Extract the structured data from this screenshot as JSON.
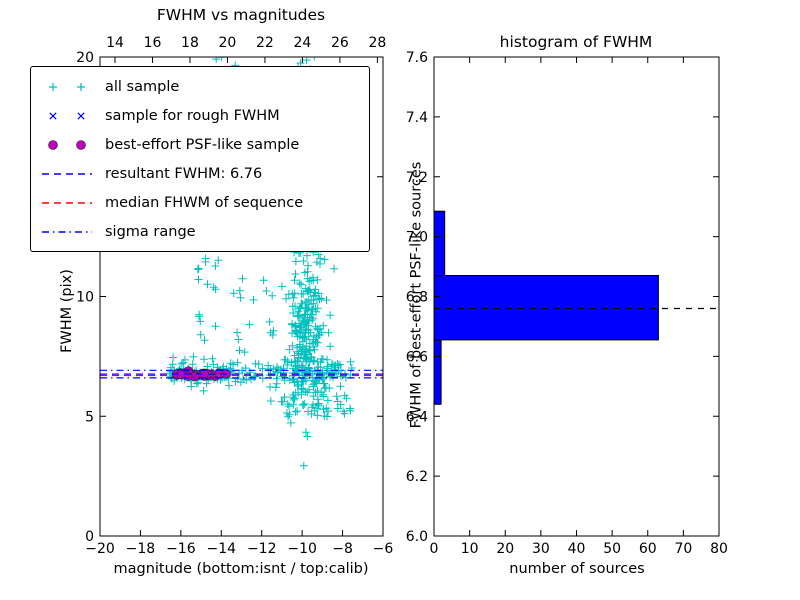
{
  "chart_data": [
    {
      "type": "scatter",
      "title": "FWHM vs magnitudes",
      "xlabel": "magnitude (bottom:isnt / top:calib)",
      "ylabel": "FWHM (pix)",
      "xlim": [
        -20,
        -6
      ],
      "ylim": [
        0,
        20
      ],
      "top_xlim": [
        13.2,
        28.3
      ],
      "xticks": [
        -20,
        -18,
        -16,
        -14,
        -12,
        -10,
        -8,
        -6
      ],
      "top_xticks": [
        14,
        16,
        18,
        20,
        22,
        24,
        26,
        28
      ],
      "yticks": [
        0,
        5,
        10,
        15,
        20
      ],
      "grid": false,
      "legend_position": "upper left",
      "hlines": [
        {
          "y": 6.76,
          "color": "#0000ff",
          "style": "dashed",
          "label": "resultant-FWHM-6.76"
        },
        {
          "y": 6.7,
          "color": "#ff0000",
          "style": "dashed",
          "label": "median-FHWM-of-sequence"
        },
        {
          "y": 6.92,
          "color": "#0000ff",
          "style": "dashdot",
          "label": "sigma-range-upper"
        },
        {
          "y": 6.6,
          "color": "#0000ff",
          "style": "dashdot",
          "label": "sigma-range-lower"
        }
      ],
      "series": [
        {
          "name": "all sample",
          "marker": "plus",
          "color": "#00bfbf",
          "clusters": [
            {
              "n": 140,
              "x": [
                "u",
                -16.6,
                -7.6
              ],
              "y": [
                "g",
                6.8,
                0.28
              ]
            },
            {
              "n": 50,
              "x": [
                "u",
                -16.5,
                -13.5
              ],
              "y": [
                "g",
                6.72,
                0.12
              ]
            },
            {
              "n": 240,
              "x": [
                "g",
                -9.8,
                0.45
              ],
              "y": [
                "g",
                8.6,
                1.9
              ]
            },
            {
              "n": 55,
              "x": [
                "g",
                -9.9,
                0.55
              ],
              "y": [
                "u",
                11.5,
                20.3
              ]
            },
            {
              "n": 40,
              "x": [
                "g",
                -9.6,
                0.8
              ],
              "y": [
                "g",
                6.2,
                0.7
              ]
            },
            {
              "n": 24,
              "x": [
                "u",
                -15.45,
                -14.15
              ],
              "y": [
                "u",
                7.2,
                13.2
              ]
            },
            {
              "n": 26,
              "x": [
                "u",
                -13.6,
                -10.7
              ],
              "y": [
                "u",
                6.9,
                10.8
              ]
            },
            {
              "n": 20,
              "x": [
                "u",
                -12.3,
                -7.7
              ],
              "y": [
                "u",
                5.0,
                6.4
              ]
            },
            {
              "n": 6,
              "x": [
                "u",
                -14.7,
                -13.2
              ],
              "y": [
                "u",
                19.2,
                20.6
              ]
            },
            {
              "n": 5,
              "x": [
                "u",
                -8.3,
                -7.5
              ],
              "y": [
                "u",
                5.2,
                6.6
              ]
            }
          ]
        },
        {
          "name": "sample for rough FWHM",
          "marker": "x",
          "color": "#0000ff",
          "clusters": [
            {
              "n": 18,
              "x": [
                "u",
                -16.2,
                -13.7
              ],
              "y": [
                "g",
                6.76,
                0.07
              ]
            }
          ]
        },
        {
          "name": "best-effort PSF-like sample",
          "marker": "circle",
          "color": "#bf00bf",
          "clusters": [
            {
              "n": 26,
              "x": [
                "u",
                -16.25,
                -13.75
              ],
              "y": [
                "g",
                6.76,
                0.06
              ]
            }
          ]
        }
      ]
    },
    {
      "type": "bar",
      "orientation": "horizontal",
      "title": "histogram of FWHM",
      "xlabel": "number of sources",
      "ylabel": "FWHM of best-effort PSF-like sources",
      "xlim": [
        0,
        80
      ],
      "ylim": [
        6.0,
        7.6
      ],
      "xticks": [
        0,
        10,
        20,
        30,
        40,
        50,
        60,
        70,
        80
      ],
      "yticks": [
        6.0,
        6.2,
        6.4,
        6.6,
        6.8,
        7.0,
        7.2,
        7.4,
        7.6
      ],
      "bar_color": "#0000ff",
      "bins": [
        {
          "from": 6.44,
          "to": 6.655,
          "count": 2
        },
        {
          "from": 6.655,
          "to": 6.87,
          "count": 63
        },
        {
          "from": 6.87,
          "to": 7.085,
          "count": 3
        }
      ],
      "median_line": 6.76
    }
  ],
  "legend": {
    "entries": [
      {
        "label": "all sample",
        "kind": "points",
        "marker": "plus",
        "color": "#00bfbf"
      },
      {
        "label": "sample for rough FWHM",
        "kind": "points",
        "marker": "x",
        "color": "#0000ff"
      },
      {
        "label": "best-effort PSF-like sample",
        "kind": "points",
        "marker": "circle",
        "color": "#bf00bf"
      },
      {
        "label": "resultant FWHM: 6.76",
        "kind": "line",
        "dash": "dashed",
        "color": "#0000ff"
      },
      {
        "label": "median FHWM of sequence",
        "kind": "line",
        "dash": "dashed",
        "color": "#ff0000"
      },
      {
        "label": "sigma range",
        "kind": "line",
        "dash": "dashdot",
        "color": "#0000ff"
      }
    ]
  }
}
